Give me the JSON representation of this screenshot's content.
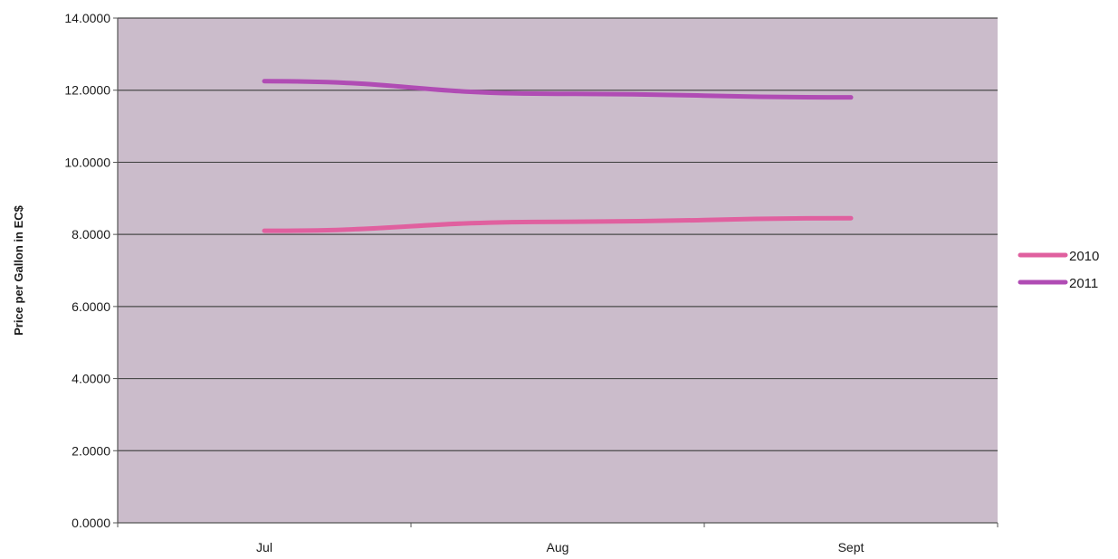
{
  "chart_data": {
    "type": "line",
    "title": "",
    "xlabel": "",
    "ylabel": "Price per Gallon in EC$",
    "categories": [
      "Jul",
      "Aug",
      "Sept"
    ],
    "series": [
      {
        "name": "2010",
        "values": [
          8.1,
          8.35,
          8.45
        ],
        "color": "#e0609f"
      },
      {
        "name": "2011",
        "values": [
          12.25,
          11.9,
          11.8
        ],
        "color": "#b04cb4"
      }
    ],
    "ylim": [
      0,
      14
    ],
    "yticks": [
      0,
      2,
      4,
      6,
      8,
      10,
      12,
      14
    ],
    "ytick_labels": [
      "0.0000",
      "2.0000",
      "4.0000",
      "6.0000",
      "8.0000",
      "10.0000",
      "12.0000",
      "14.0000"
    ],
    "grid": true,
    "legend_position": "right",
    "plot_background": "#cbbccb",
    "gridline_color": "#4a4a4a"
  }
}
